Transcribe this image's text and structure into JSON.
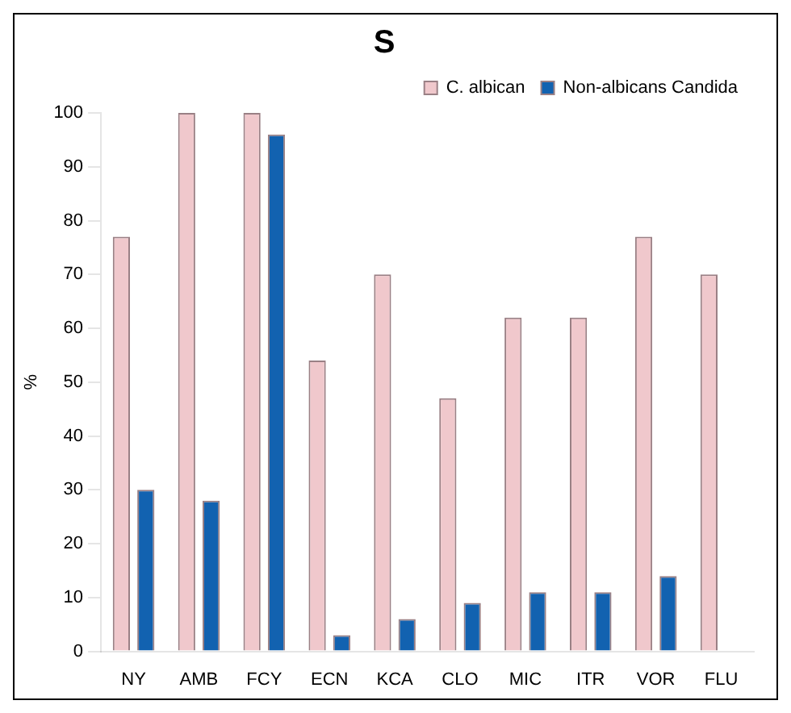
{
  "chart_data": {
    "type": "bar",
    "title": "S",
    "ylabel": "%",
    "categories": [
      "NY",
      "AMB",
      "FCY",
      "ECN",
      "KCA",
      "CLO",
      "MIC",
      "ITR",
      "VOR",
      "FLU"
    ],
    "series": [
      {
        "name": "C. albican",
        "color": "#f0c8cc",
        "values": [
          77,
          100,
          100,
          54,
          70,
          47,
          62,
          62,
          77,
          70
        ]
      },
      {
        "name": "Non-albicans Candida",
        "color": "#1262b0",
        "values": [
          30,
          28,
          96,
          3,
          6,
          9,
          11,
          11,
          14,
          0
        ]
      }
    ],
    "ylim": [
      0,
      100
    ],
    "yticks": [
      0,
      10,
      20,
      30,
      40,
      50,
      60,
      70,
      80,
      90,
      100
    ],
    "grid": false,
    "legend": "top right"
  }
}
